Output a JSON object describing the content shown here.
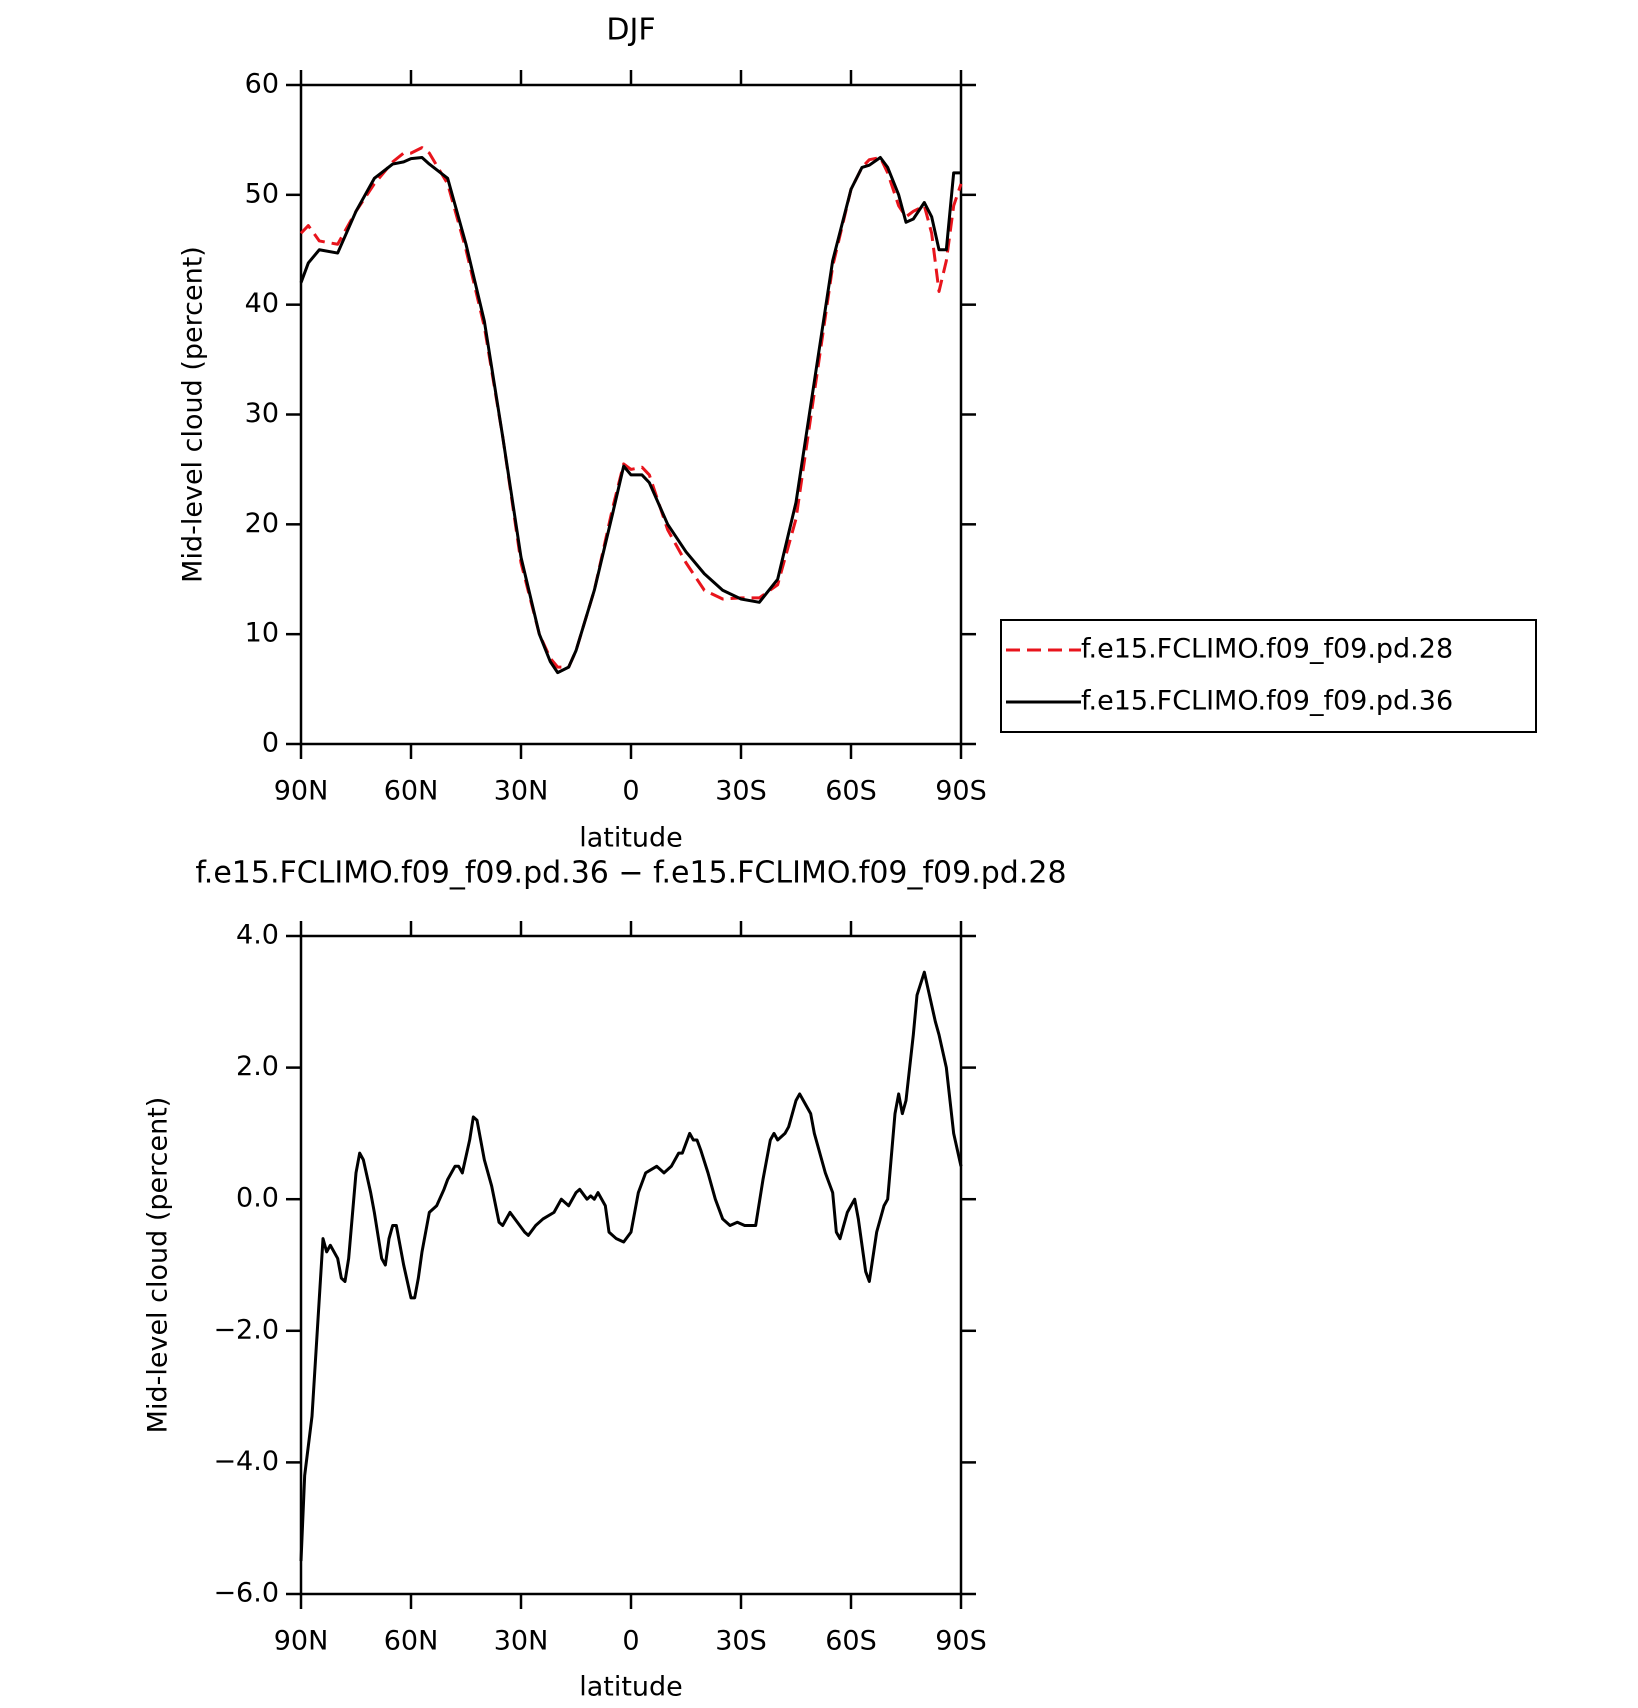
{
  "chart_data": [
    {
      "type": "line",
      "title": "DJF",
      "xlabel": "latitude",
      "ylabel": "Mid-level cloud (percent)",
      "x": [
        90,
        88,
        85,
        80,
        75,
        70,
        65,
        62,
        60,
        57,
        55,
        50,
        45,
        40,
        35,
        30,
        25,
        22,
        20,
        17,
        15,
        10,
        5,
        2,
        0,
        -3,
        -5,
        -10,
        -15,
        -20,
        -25,
        -30,
        -35,
        -40,
        -45,
        -50,
        -55,
        -60,
        -63,
        -65,
        -68,
        -70,
        -73,
        -75,
        -77,
        -80,
        -82,
        -84,
        -86,
        -88,
        -90
      ],
      "xlim": [
        90,
        -90
      ],
      "xticks": [
        {
          "value": 90,
          "label": "90N"
        },
        {
          "value": 60,
          "label": "60N"
        },
        {
          "value": 30,
          "label": "30N"
        },
        0,
        {
          "value": -30,
          "label": "30S"
        },
        {
          "value": -60,
          "label": "60S"
        },
        {
          "value": -90,
          "label": "90S"
        }
      ],
      "ylim": [
        0,
        60
      ],
      "yticks": [
        0,
        10,
        20,
        30,
        40,
        50,
        60
      ],
      "legend": "right",
      "series": [
        {
          "name": "f.e15.FCLIMO.f09_f09.pd.28",
          "color": "#e8141c",
          "style": "dashed",
          "values": [
            46.5,
            47.2,
            45.8,
            45.5,
            48.5,
            51,
            53,
            53.8,
            53.8,
            54.3,
            53.8,
            51,
            45,
            38,
            28,
            16.5,
            10,
            7.8,
            7,
            7,
            8.5,
            14,
            21.5,
            25.5,
            25,
            25.2,
            24.5,
            19.5,
            16.5,
            14,
            13.2,
            13.3,
            13.3,
            14.5,
            20.5,
            32,
            43.5,
            50.5,
            52.5,
            53.2,
            53.4,
            52,
            49,
            48,
            48.5,
            49,
            46.5,
            41.2,
            44,
            49,
            51
          ]
        },
        {
          "name": "f.e15.FCLIMO.f09_f09.pd.36",
          "color": "#000000",
          "style": "solid",
          "values": [
            42,
            43.8,
            45,
            44.7,
            48.5,
            51.5,
            52.8,
            53,
            53.3,
            53.4,
            52.8,
            51.5,
            45.5,
            38.5,
            28,
            17,
            10,
            7.5,
            6.5,
            7,
            8.5,
            14,
            21,
            25.3,
            24.5,
            24.5,
            23.8,
            20,
            17.5,
            15.5,
            14,
            13.2,
            12.9,
            15,
            22,
            33,
            44,
            50.5,
            52.5,
            52.7,
            53.4,
            52.5,
            50,
            47.5,
            47.8,
            49.3,
            48,
            45,
            45,
            52,
            52
          ]
        }
      ]
    },
    {
      "type": "line",
      "title": "f.e15.FCLIMO.f09_f09.pd.36 − f.e15.FCLIMO.f09_f09.pd.28",
      "xlabel": "latitude",
      "ylabel": "Mid-level cloud (percent)",
      "x": [
        90,
        89,
        87,
        85,
        84,
        83,
        82,
        80,
        79,
        78,
        77,
        75,
        74,
        73,
        71,
        70,
        68,
        67,
        66,
        65,
        64,
        63,
        62,
        60,
        59,
        58,
        57,
        55,
        53,
        51,
        50,
        48,
        47,
        46,
        44,
        43,
        42,
        40,
        38,
        36,
        35,
        33,
        31,
        29,
        28,
        26,
        24,
        21,
        19,
        17,
        15,
        14,
        12,
        11,
        10,
        9,
        7,
        6,
        4,
        2,
        0,
        -2,
        -4,
        -7,
        -9,
        -11,
        -13,
        -14,
        -16,
        -17,
        -18,
        -19,
        -21,
        -23,
        -25,
        -27,
        -29,
        -31,
        -34,
        -36,
        -38,
        -39,
        -40,
        -42,
        -43,
        -45,
        -46,
        -47,
        -49,
        -50,
        -52,
        -53,
        -55,
        -56,
        -57,
        -59,
        -60,
        -61,
        -62,
        -64,
        -65,
        -67,
        -69,
        -70,
        -72,
        -73,
        -74,
        -75,
        -77,
        -78,
        -80,
        -81,
        -83,
        -84,
        -86,
        -88,
        -90
      ],
      "values": [
        -5.5,
        -4.2,
        -3.3,
        -1.5,
        -0.6,
        -0.8,
        -0.7,
        -0.9,
        -1.2,
        -1.25,
        -0.9,
        0.4,
        0.7,
        0.6,
        0.1,
        -0.2,
        -0.9,
        -1.0,
        -0.6,
        -0.4,
        -0.4,
        -0.7,
        -1.0,
        -1.5,
        -1.5,
        -1.2,
        -0.8,
        -0.2,
        -0.1,
        0.15,
        0.3,
        0.5,
        0.5,
        0.4,
        0.9,
        1.25,
        1.2,
        0.6,
        0.2,
        -0.35,
        -0.4,
        -0.2,
        -0.35,
        -0.5,
        -0.55,
        -0.4,
        -0.3,
        -0.2,
        0.0,
        -0.1,
        0.1,
        0.15,
        0.0,
        0.05,
        0.0,
        0.1,
        -0.1,
        -0.5,
        -0.6,
        -0.65,
        -0.5,
        0.1,
        0.4,
        0.5,
        0.4,
        0.5,
        0.7,
        0.7,
        1.0,
        0.9,
        0.9,
        0.75,
        0.4,
        0.0,
        -0.3,
        -0.4,
        -0.35,
        -0.4,
        -0.4,
        0.3,
        0.9,
        1.0,
        0.9,
        1.0,
        1.1,
        1.5,
        1.6,
        1.5,
        1.3,
        1.0,
        0.6,
        0.4,
        0.1,
        -0.5,
        -0.6,
        -0.2,
        -0.1,
        0.0,
        -0.3,
        -1.1,
        -1.25,
        -0.5,
        -0.1,
        0.0,
        1.3,
        1.6,
        1.3,
        1.5,
        2.5,
        3.1,
        3.45,
        3.2,
        2.7,
        2.5,
        2.0,
        1.0,
        0.5
      ],
      "color": "#000000",
      "xlim": [
        90,
        -90
      ],
      "xticks": [
        {
          "value": 90,
          "label": "90N"
        },
        {
          "value": 60,
          "label": "60N"
        },
        {
          "value": 30,
          "label": "30N"
        },
        0,
        {
          "value": -30,
          "label": "30S"
        },
        {
          "value": -60,
          "label": "60S"
        },
        {
          "value": -90,
          "label": "90S"
        }
      ],
      "ylim": [
        -6,
        4
      ],
      "yticks": [
        {
          "value": -6,
          "label": "−6.0"
        },
        {
          "value": -4,
          "label": "−4.0"
        },
        {
          "value": -2,
          "label": "−2.0"
        },
        {
          "value": 0,
          "label": "0.0"
        },
        {
          "value": 2,
          "label": "2.0"
        },
        {
          "value": 4,
          "label": "4.0"
        }
      ]
    }
  ]
}
